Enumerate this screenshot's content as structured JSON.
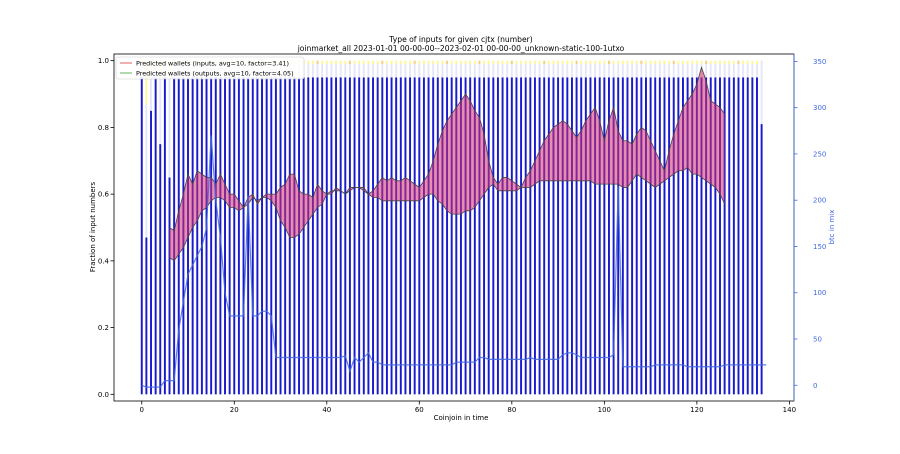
{
  "chart_data": {
    "type": "bar",
    "title_line1": "Type of inputs for given cjtx (number)",
    "title_line2": "joinmarket_all 2023-01-01 00-00-00--2023-02-01 00-00-00_unknown-static-100-1utxo",
    "xlabel": "Coinjoin in time",
    "ylabel": "Fraction of input numbers",
    "ylabel_right": "btc in mix",
    "xlim": [
      -6,
      141
    ],
    "ylim": [
      -0.02,
      1.02
    ],
    "ylim_right": [
      -17,
      358
    ],
    "xticks": [
      0,
      20,
      40,
      60,
      80,
      100,
      120,
      140
    ],
    "yticks": [
      0.0,
      0.2,
      0.4,
      0.6,
      0.8,
      1.0
    ],
    "yticks_right": [
      0,
      50,
      100,
      150,
      200,
      250,
      300,
      350
    ],
    "legend": [
      {
        "label": "Predicted wallets (inputs, avg=10, factor=3.41)",
        "color": "#e06060"
      },
      {
        "label": "Predicted wallets (outputs, avg=10, factor=4.05)",
        "color": "#5fb35f"
      }
    ],
    "colors": {
      "bar_base": "#1a1acd",
      "bar_mid": "#e6e6fa",
      "bar_top": "#fff59a",
      "bar_accent": "#f0d080",
      "btc_line": "#4169e1",
      "fill_inputs": "#d6306e",
      "fill_outputs": "#3a9a6a",
      "fill_orange": "#f0a070",
      "outline": "#444444"
    },
    "num_coinjoins": 136,
    "bar_fraction_base": [
      0.95,
      0.47,
      0.85,
      0.95,
      0.75,
      0.95,
      0.65,
      0.95,
      0.95,
      0.95,
      0.95,
      0.95,
      0.95,
      0.95,
      0.95,
      0.95,
      0.95,
      0.95,
      0.95,
      0.95,
      0.95,
      0.95,
      0.95,
      0.95,
      0.95,
      0.95,
      0.95,
      0.95,
      0.95,
      0.95,
      0.95,
      0.95,
      0.95,
      0.95,
      0.95,
      0.95,
      0.95,
      0.95,
      0.95,
      0.95,
      0.95,
      0.95,
      0.95,
      0.95,
      0.95,
      0.95,
      0.95,
      0.95,
      0.95,
      0.95,
      0.95,
      0.95,
      0.95,
      0.95,
      0.95,
      0.95,
      0.95,
      0.95,
      0.95,
      0.95,
      0.95,
      0.95,
      0.95,
      0.95,
      0.95,
      0.95,
      0.95,
      0.95,
      0.95,
      0.95,
      0.95,
      0.95,
      0.95,
      0.95,
      0.95,
      0.95,
      0.95,
      0.95,
      0.95,
      0.95,
      0.95,
      0.95,
      0.95,
      0.95,
      0.95,
      0.95,
      0.95,
      0.95,
      0.95,
      0.95,
      0.95,
      0.95,
      0.95,
      0.95,
      0.95,
      0.95,
      0.95,
      0.95,
      0.95,
      0.95,
      0.95,
      0.95,
      0.95,
      0.95,
      0.95,
      0.95,
      0.95,
      0.95,
      0.95,
      0.95,
      0.95,
      0.95,
      0.95,
      0.95,
      0.95,
      0.95,
      0.95,
      0.95,
      0.95,
      0.95,
      0.95,
      0.95,
      0.95,
      0.95,
      0.95,
      0.95,
      0.95,
      0.95,
      0.95,
      0.95,
      0.95,
      0.95,
      0.95,
      0.95,
      0.81
    ],
    "bar_fraction_mid": [
      0.04,
      0.4,
      0.1,
      0.04,
      0.2,
      0.04,
      0.3,
      0.04,
      0.04,
      0.04,
      0.04,
      0.04,
      0.04,
      0.04,
      0.04,
      0.04,
      0.04,
      0.04,
      0.04,
      0.04,
      0.04,
      0.04,
      0.04,
      0.04,
      0.04,
      0.04,
      0.04,
      0.04,
      0.04,
      0.04,
      0.04,
      0.04,
      0.04,
      0.04,
      0.04,
      0.04,
      0.04,
      0.04,
      0.04,
      0.04,
      0.04,
      0.04,
      0.04,
      0.04,
      0.04,
      0.04,
      0.04,
      0.04,
      0.04,
      0.04,
      0.04,
      0.04,
      0.04,
      0.04,
      0.04,
      0.04,
      0.04,
      0.04,
      0.04,
      0.04,
      0.04,
      0.04,
      0.04,
      0.04,
      0.04,
      0.04,
      0.04,
      0.04,
      0.04,
      0.04,
      0.04,
      0.04,
      0.04,
      0.04,
      0.04,
      0.04,
      0.04,
      0.04,
      0.04,
      0.04,
      0.04,
      0.04,
      0.04,
      0.04,
      0.04,
      0.04,
      0.04,
      0.04,
      0.04,
      0.04,
      0.04,
      0.04,
      0.04,
      0.04,
      0.04,
      0.04,
      0.04,
      0.04,
      0.04,
      0.04,
      0.04,
      0.04,
      0.04,
      0.04,
      0.04,
      0.04,
      0.04,
      0.04,
      0.04,
      0.04,
      0.04,
      0.04,
      0.04,
      0.04,
      0.04,
      0.04,
      0.04,
      0.04,
      0.04,
      0.04,
      0.04,
      0.04,
      0.04,
      0.04,
      0.04,
      0.04,
      0.04,
      0.04,
      0.04,
      0.04,
      0.04,
      0.04,
      0.04,
      0.04,
      0.19
    ],
    "btc_in_mix": [
      0,
      -2,
      -2,
      -2,
      -2,
      5,
      5,
      5,
      60,
      90,
      120,
      130,
      140,
      150,
      170,
      270,
      200,
      160,
      100,
      75,
      75,
      75,
      75,
      205,
      75,
      75,
      80,
      80,
      75,
      30,
      30,
      30,
      30,
      30,
      30,
      30,
      30,
      30,
      30,
      30,
      30,
      30,
      30,
      30,
      32,
      15,
      30,
      25,
      30,
      35,
      25,
      25,
      22,
      22,
      22,
      22,
      22,
      22,
      22,
      22,
      22,
      22,
      22,
      22,
      22,
      22,
      22,
      22,
      25,
      25,
      25,
      25,
      25,
      30,
      30,
      28,
      28,
      28,
      28,
      28,
      28,
      28,
      28,
      28,
      30,
      28,
      28,
      28,
      28,
      28,
      28,
      33,
      35,
      35,
      33,
      30,
      30,
      30,
      30,
      30,
      30,
      30,
      33,
      215,
      20,
      20,
      20,
      20,
      20,
      20,
      20,
      22,
      22,
      22,
      22,
      22,
      22,
      22,
      20,
      20,
      20,
      20,
      20,
      20,
      20,
      20,
      22,
      22,
      22,
      22,
      22,
      22,
      22,
      22,
      22,
      22
    ],
    "wallets_inputs_upper": [
      null,
      null,
      null,
      null,
      null,
      null,
      0.5,
      0.49,
      0.55,
      0.6,
      0.66,
      0.63,
      0.67,
      0.66,
      0.65,
      0.65,
      0.63,
      0.66,
      0.63,
      0.6,
      0.6,
      0.58,
      0.56,
      0.59,
      0.6,
      0.57,
      0.59,
      0.6,
      0.6,
      0.6,
      0.62,
      0.63,
      0.66,
      0.66,
      0.61,
      0.6,
      0.6,
      0.59,
      0.63,
      0.61,
      0.6,
      0.6,
      0.62,
      0.61,
      0.6,
      0.62,
      0.62,
      0.62,
      0.62,
      0.6,
      0.61,
      0.63,
      0.65,
      0.64,
      0.65,
      0.64,
      0.64,
      0.65,
      0.64,
      0.63,
      0.62,
      0.64,
      0.66,
      0.7,
      0.75,
      0.79,
      0.82,
      0.84,
      0.86,
      0.88,
      0.9,
      0.88,
      0.85,
      0.83,
      0.78,
      0.7,
      0.65,
      0.63,
      0.65,
      0.65,
      0.64,
      0.63,
      0.62,
      0.65,
      0.67,
      0.7,
      0.73,
      0.76,
      0.78,
      0.8,
      0.81,
      0.82,
      0.81,
      0.79,
      0.77,
      0.79,
      0.82,
      0.84,
      0.86,
      0.82,
      0.76,
      0.82,
      0.86,
      0.79,
      0.76,
      0.76,
      0.75,
      0.78,
      0.8,
      0.79,
      0.76,
      0.73,
      0.7,
      0.67,
      0.73,
      0.78,
      0.82,
      0.86,
      0.88,
      0.9,
      0.93,
      0.98,
      0.94,
      0.88,
      0.87,
      0.86,
      0.84,
      0.82,
      0.8,
      0.77,
      null,
      null,
      null,
      null,
      null,
      null
    ],
    "wallets_inputs_lower": [
      null,
      null,
      null,
      null,
      null,
      null,
      0.41,
      0.4,
      0.42,
      0.44,
      0.47,
      0.5,
      0.52,
      0.55,
      0.56,
      0.58,
      0.59,
      0.59,
      0.58,
      0.56,
      0.56,
      0.55,
      0.56,
      0.57,
      0.59,
      0.58,
      0.59,
      0.59,
      0.58,
      0.56,
      0.52,
      0.5,
      0.47,
      0.47,
      0.48,
      0.5,
      0.52,
      0.54,
      0.56,
      0.57,
      0.6,
      0.61,
      0.61,
      0.61,
      0.6,
      0.61,
      0.62,
      0.62,
      0.61,
      0.6,
      0.59,
      0.59,
      0.58,
      0.58,
      0.58,
      0.58,
      0.58,
      0.58,
      0.58,
      0.58,
      0.58,
      0.59,
      0.6,
      0.6,
      0.58,
      0.57,
      0.55,
      0.54,
      0.54,
      0.54,
      0.55,
      0.55,
      0.56,
      0.58,
      0.6,
      0.62,
      0.63,
      0.61,
      0.61,
      0.61,
      0.61,
      0.61,
      0.62,
      0.62,
      0.62,
      0.63,
      0.64,
      0.64,
      0.64,
      0.64,
      0.64,
      0.64,
      0.64,
      0.64,
      0.64,
      0.64,
      0.64,
      0.64,
      0.63,
      0.63,
      0.63,
      0.63,
      0.63,
      0.63,
      0.62,
      0.62,
      0.64,
      0.66,
      0.65,
      0.64,
      0.63,
      0.62,
      0.63,
      0.64,
      0.65,
      0.66,
      0.67,
      0.67,
      0.68,
      0.66,
      0.66,
      0.65,
      0.64,
      0.63,
      0.62,
      0.6,
      0.57,
      null,
      null,
      null,
      null,
      null,
      null
    ]
  }
}
